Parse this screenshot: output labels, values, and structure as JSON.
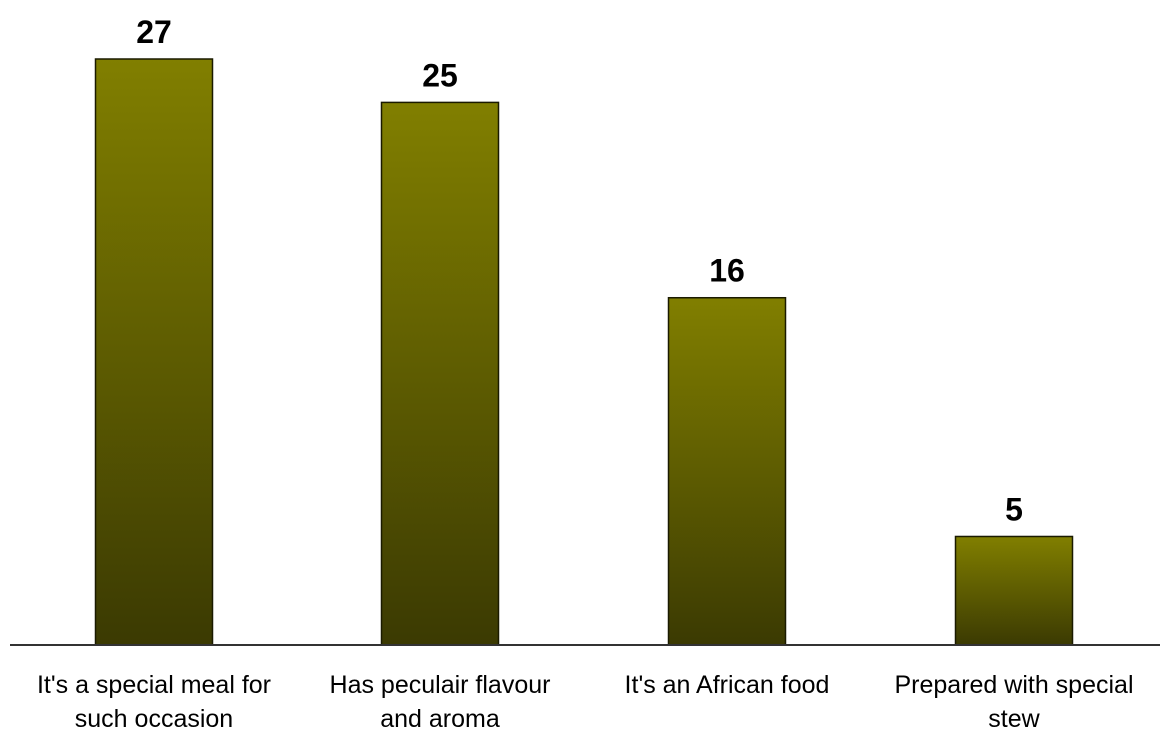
{
  "chart_data": {
    "type": "bar",
    "categories": [
      [
        "It's a special meal for",
        "such occasion"
      ],
      [
        "Has peculair flavour",
        "and aroma"
      ],
      [
        "It's an African food"
      ],
      [
        "Prepared with special",
        "stew"
      ]
    ],
    "values": [
      27,
      25,
      16,
      5
    ],
    "title": "",
    "xlabel": "",
    "ylabel": "",
    "ylim": [
      0,
      27
    ],
    "grid": false,
    "bar_gradient": {
      "top": "#817f00",
      "bottom": "#3b3a02"
    },
    "bar_border_color": "#1a1a00",
    "axis_color": "#333333"
  }
}
